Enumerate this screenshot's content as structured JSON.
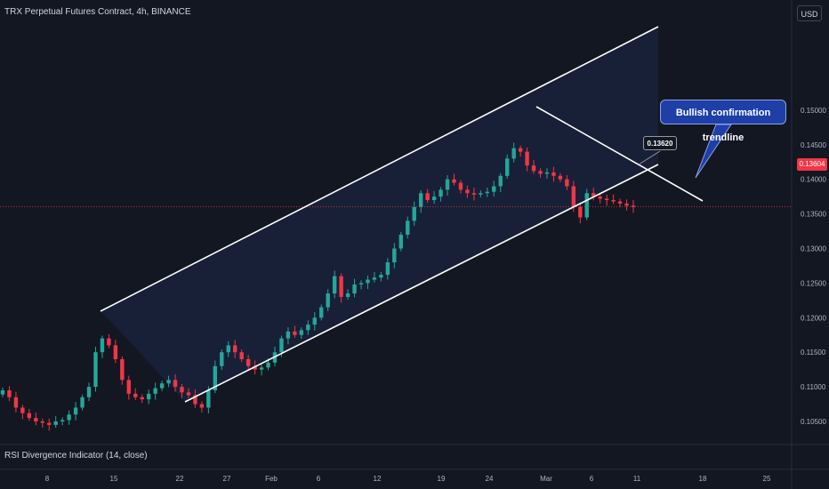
{
  "header": {
    "title": "TRX Perpetual Futures Contract, 4h, BINANCE"
  },
  "currency": "USD",
  "indicator": {
    "label": "RSI Divergence Indicator (14, close)"
  },
  "annotation": {
    "callout": "Bullish confirmation trendline",
    "marker_value": "0.13620"
  },
  "last_price": {
    "label": "0.13604",
    "value": 0.13604,
    "color": "#f23645"
  },
  "colors": {
    "up": "#26a69a",
    "down": "#f23645",
    "channel_line": "#ffffff",
    "channel_fill": "#1b2540",
    "callout_bg": "#1e3fa8"
  },
  "chart_data": {
    "type": "candlestick",
    "y_axis": {
      "ticks": [
        "0.15000",
        "0.14500",
        "0.14000",
        "0.13500",
        "0.13000",
        "0.12500",
        "0.12000",
        "0.11500",
        "0.11000",
        "0.10500"
      ],
      "ylim": [
        0.102,
        0.1545
      ]
    },
    "x_axis": {
      "ticks": [
        "8",
        "15",
        "22",
        "27",
        "Feb",
        "6",
        "12",
        "19",
        "24",
        "Mar",
        "6",
        "11",
        "18",
        "25"
      ]
    },
    "series": [
      {
        "values_close": [
          0.1095,
          0.1085,
          0.107,
          0.1062,
          0.1055,
          0.105,
          0.1048,
          0.1045,
          0.105,
          0.1052,
          0.106,
          0.107,
          0.1085,
          0.11,
          0.115,
          0.117,
          0.116,
          0.114,
          0.111,
          0.109,
          0.1085,
          0.1082,
          0.109,
          0.1098,
          0.1105,
          0.111,
          0.11,
          0.1092,
          0.1088,
          0.1075,
          0.107,
          0.1095,
          0.113,
          0.115,
          0.116,
          0.115,
          0.114,
          0.113,
          0.1125,
          0.1128,
          0.1135,
          0.115,
          0.117,
          0.118,
          0.1175,
          0.1182,
          0.119,
          0.12,
          0.1215,
          0.1235,
          0.126,
          0.123,
          0.1235,
          0.1248,
          0.125,
          0.1255,
          0.1258,
          0.1262,
          0.128,
          0.13,
          0.132,
          0.134,
          0.136,
          0.138,
          0.137,
          0.1375,
          0.1385,
          0.14,
          0.1395,
          0.1385,
          0.138,
          0.1378,
          0.138,
          0.1382,
          0.139,
          0.1405,
          0.143,
          0.1445,
          0.144,
          0.142,
          0.1412,
          0.1408,
          0.141,
          0.1405,
          0.14,
          0.139,
          0.136,
          0.1345,
          0.138,
          0.1375,
          0.1372,
          0.137,
          0.1368,
          0.1365,
          0.1362,
          0.136
        ]
      }
    ],
    "channel": {
      "upper": [
        [
          0.1172
        ],
        [
          0.1535
        ]
      ],
      "lower": [
        [
          0.1055
        ],
        [
          0.135
        ]
      ]
    },
    "trendline": {
      "from": 0.1442,
      "to": 0.1315
    }
  }
}
